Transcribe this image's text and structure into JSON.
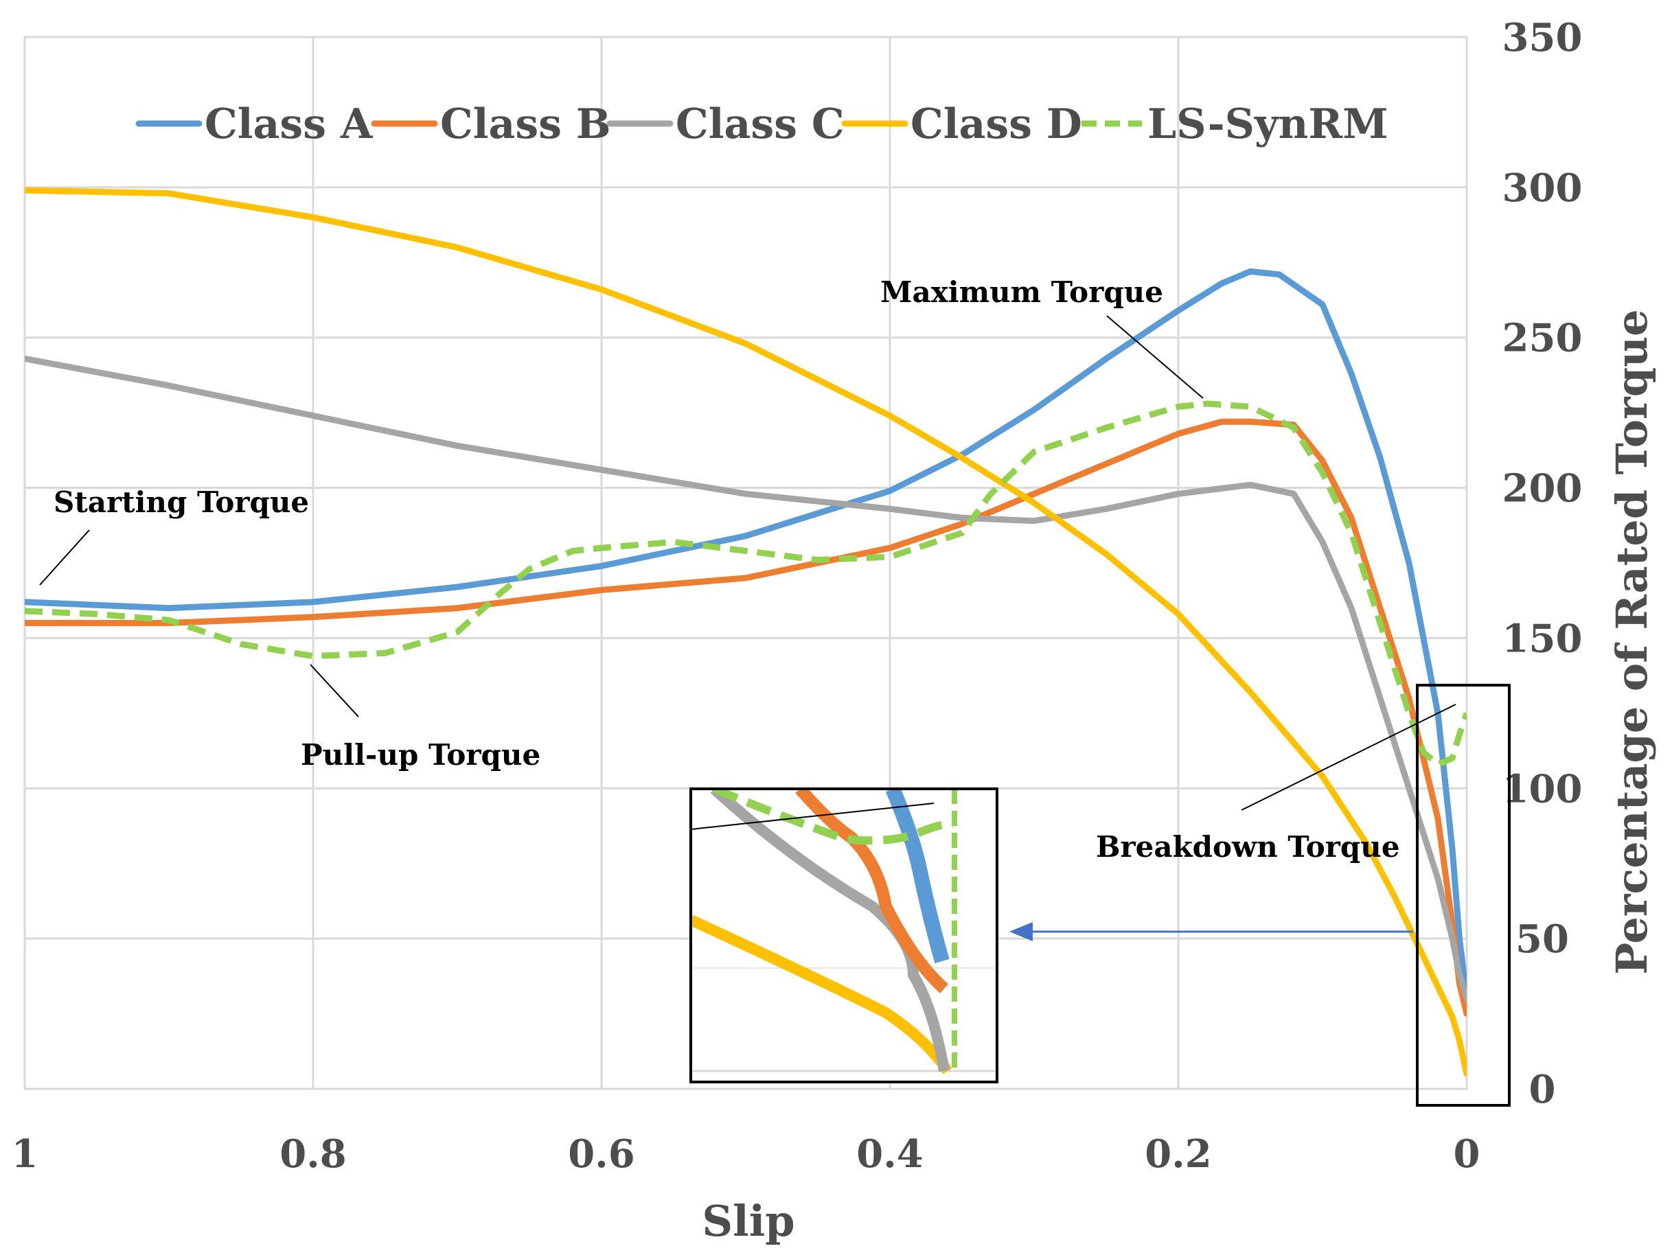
{
  "chart_data": {
    "type": "line",
    "title": "",
    "xlabel": "Slip",
    "ylabel": "Percentage of Rated Torque",
    "xlim": [
      1,
      0
    ],
    "ylim": [
      0,
      350
    ],
    "x_ticks": [
      "1",
      "0.8",
      "0.6",
      "0.4",
      "0.2",
      "0"
    ],
    "x_tick_values": [
      1,
      0.8,
      0.6,
      0.4,
      0.2,
      0
    ],
    "y_ticks": [
      "0",
      "50",
      "100",
      "150",
      "200",
      "250",
      "300",
      "350"
    ],
    "y_tick_values": [
      0,
      50,
      100,
      150,
      200,
      250,
      300,
      350
    ],
    "grid": true,
    "legend_position": "top",
    "series": [
      {
        "name": "Class A",
        "color": "#5b9bd5",
        "dash": false,
        "x": [
          1,
          0.9,
          0.8,
          0.7,
          0.6,
          0.5,
          0.4,
          0.35,
          0.3,
          0.25,
          0.2,
          0.17,
          0.15,
          0.13,
          0.1,
          0.08,
          0.06,
          0.04,
          0.02,
          0.01,
          0.005,
          0
        ],
        "y": [
          162,
          160,
          162,
          167,
          174,
          184,
          199,
          211,
          226,
          243,
          259,
          268,
          272,
          271,
          261,
          238,
          210,
          175,
          125,
          80,
          50,
          30
        ]
      },
      {
        "name": "Class B",
        "color": "#ed7d31",
        "dash": false,
        "x": [
          1,
          0.9,
          0.8,
          0.7,
          0.6,
          0.5,
          0.4,
          0.35,
          0.3,
          0.25,
          0.2,
          0.17,
          0.15,
          0.12,
          0.1,
          0.08,
          0.06,
          0.04,
          0.02,
          0.01,
          0.005,
          0
        ],
        "y": [
          155,
          155,
          157,
          160,
          166,
          170,
          180,
          188,
          198,
          208,
          218,
          222,
          222,
          221,
          209,
          190,
          160,
          130,
          90,
          55,
          35,
          25
        ]
      },
      {
        "name": "Class C",
        "color": "#a5a5a5",
        "dash": false,
        "x": [
          1,
          0.9,
          0.8,
          0.7,
          0.6,
          0.5,
          0.4,
          0.35,
          0.3,
          0.25,
          0.2,
          0.15,
          0.12,
          0.1,
          0.08,
          0.06,
          0.04,
          0.02,
          0.01,
          0.005,
          0
        ],
        "y": [
          243,
          234,
          224,
          214,
          206,
          198,
          193,
          190,
          189,
          193,
          198,
          201,
          198,
          182,
          160,
          130,
          100,
          70,
          50,
          38,
          30
        ]
      },
      {
        "name": "Class D",
        "color": "#ffc000",
        "dash": false,
        "x": [
          1,
          0.9,
          0.8,
          0.7,
          0.6,
          0.5,
          0.45,
          0.4,
          0.35,
          0.3,
          0.25,
          0.2,
          0.15,
          0.1,
          0.07,
          0.05,
          0.03,
          0.02,
          0.01,
          0.005,
          0
        ],
        "y": [
          299,
          298,
          290,
          280,
          266,
          248,
          236,
          224,
          210,
          195,
          178,
          158,
          132,
          104,
          82,
          64,
          44,
          34,
          24,
          16,
          5
        ]
      },
      {
        "name": "LS-SynRM",
        "color": "#92d050",
        "dash": true,
        "x": [
          1,
          0.95,
          0.9,
          0.85,
          0.8,
          0.75,
          0.7,
          0.67,
          0.65,
          0.62,
          0.6,
          0.55,
          0.5,
          0.45,
          0.4,
          0.35,
          0.33,
          0.3,
          0.25,
          0.2,
          0.18,
          0.15,
          0.12,
          0.1,
          0.08,
          0.06,
          0.04,
          0.03,
          0.02,
          0.01,
          0.005,
          0
        ],
        "y": [
          159,
          158,
          156,
          148,
          144,
          145,
          152,
          165,
          173,
          179,
          180,
          182,
          179,
          176,
          177,
          185,
          198,
          212,
          220,
          227,
          228,
          227,
          220,
          205,
          185,
          155,
          125,
          112,
          108,
          110,
          118,
          125
        ]
      }
    ],
    "annotations": [
      "Starting Torque",
      "Pull-up Torque",
      "Maximum Torque",
      "Breakdown Torque"
    ]
  }
}
